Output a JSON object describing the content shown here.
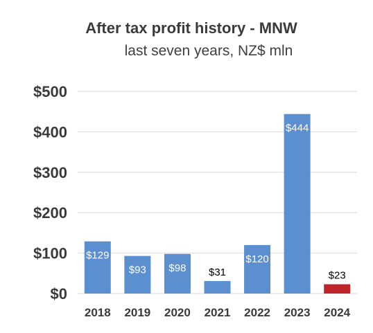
{
  "chart_data": {
    "type": "bar",
    "title": "After tax profit history - MNW",
    "subtitle": "last seven years, NZ$ mln",
    "xlabel": "",
    "ylabel": "",
    "categories": [
      "2018",
      "2019",
      "2020",
      "2021",
      "2022",
      "2023",
      "2024"
    ],
    "values": [
      129,
      93,
      98,
      31,
      120,
      444,
      23
    ],
    "data_labels": [
      "$129",
      "$93",
      "$98",
      "$31",
      "$120",
      "$444",
      "$23"
    ],
    "ylim": [
      0,
      500
    ],
    "yticks": [
      0,
      100,
      200,
      300,
      400,
      500
    ],
    "ytick_labels": [
      "$0",
      "$100",
      "$200",
      "$300",
      "$400",
      "$500"
    ],
    "grid": true,
    "legend": "none",
    "colors": {
      "bar": "#5b8fcf",
      "highlight_bar": "#c0242b",
      "highlight_category": "2024",
      "grid": "#d9d9d9",
      "tick_text": "#3a3a3a",
      "label_inside": "#ffffff",
      "label_outside": "#000000"
    }
  }
}
